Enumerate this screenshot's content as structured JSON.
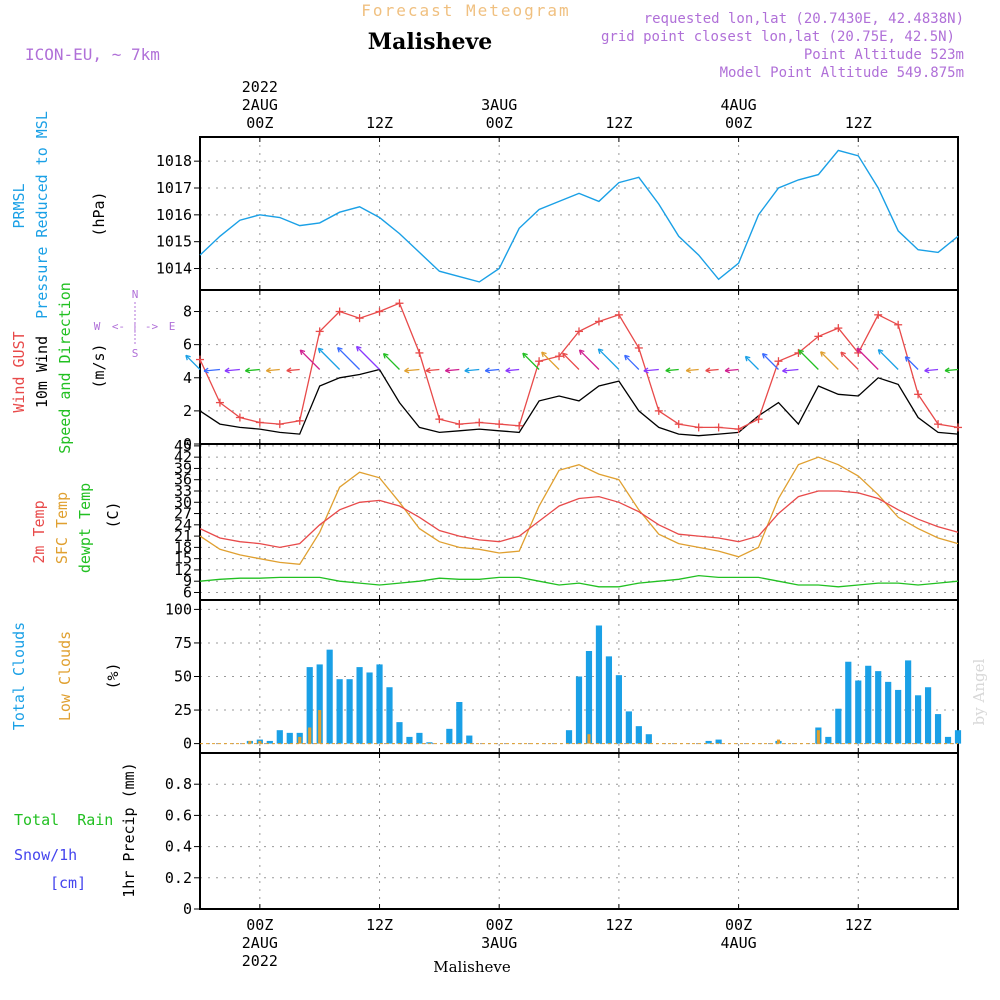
{
  "header": {
    "title": "Forecast Meteogram",
    "location": "Malisheve",
    "model": "ICON-EU, ~ 7km",
    "requested": "requested lon,lat (20.7430E, 42.4838N)",
    "gridpoint": "grid point closest lon,lat (20.75E, 42.5N)",
    "point_alt": "Point Altitude 523m",
    "model_alt": "Model Point Altitude 549.875m",
    "footer_location": "Malisheve",
    "watermark": "by Angel"
  },
  "time_axis": {
    "top_ticks": [
      "00Z",
      "12Z",
      "00Z",
      "12Z",
      "00Z",
      "12Z"
    ],
    "bottom_ticks": [
      "00Z",
      "12Z",
      "00Z",
      "12Z",
      "00Z",
      "12Z"
    ],
    "top_year": "2022",
    "top_dates": [
      "2AUG",
      "3AUG",
      "4AUG"
    ],
    "bottom_dates": [
      "2AUG",
      "3AUG",
      "4AUG"
    ],
    "bottom_year": "2022"
  },
  "labels": {
    "p_l1": "PRMSL",
    "p_l2": "Pressure Reduced to MSL",
    "p_unit": "(hPa)",
    "w_l1": "Wind GUST",
    "w_l2": "10m Wind",
    "w_l3": "Speed and Direction",
    "w_unit": "(m/s)",
    "compass_n": "N",
    "compass_s": "S",
    "compass_w": "W",
    "compass_e": "E",
    "compass_mid": "<- | ->",
    "t_l1": "2m Temp",
    "t_l2": "SFC Temp",
    "t_l3": "dewpt Temp",
    "t_unit": "(C)",
    "c_l1": "Total Clouds",
    "c_l2": "Low Clouds",
    "c_unit": "(%)",
    "r_l1": "Total  Rain",
    "r_l2": "Snow/1h",
    "r_l3": "[cm]",
    "r_unit": "1hr Precip (mm)"
  },
  "colors": {
    "pressure": "#1aa0e6",
    "gust": "#e84a4a",
    "wind": "#000000",
    "temp2m": "#e84a4a",
    "sfc_temp": "#e0a030",
    "dewpoint": "#22c022",
    "total_clouds": "#1aa0e6",
    "low_clouds": "#e0a030",
    "rain": "#22c022",
    "snow": "#4444ee",
    "label_purple": "#b070d8",
    "title_orange": "#f0c080"
  },
  "chart_data": [
    {
      "type": "line",
      "name": "PRMSL",
      "x_hours": [
        0,
        2,
        4,
        6,
        8,
        10,
        12,
        14,
        16,
        18,
        20,
        22,
        24,
        26,
        28,
        30,
        32,
        34,
        36,
        38,
        40,
        42,
        44,
        46,
        48,
        50,
        52,
        54,
        56,
        58,
        60,
        62,
        64,
        66,
        68,
        70,
        72,
        74,
        76
      ],
      "values": [
        1014.5,
        1015.2,
        1015.8,
        1016.0,
        1015.9,
        1015.6,
        1015.7,
        1016.1,
        1016.3,
        1015.9,
        1015.3,
        1014.6,
        1013.9,
        1013.7,
        1013.5,
        1014.0,
        1015.5,
        1016.2,
        1016.5,
        1016.8,
        1016.5,
        1017.2,
        1017.4,
        1016.4,
        1015.2,
        1014.5,
        1013.6,
        1014.2,
        1016.0,
        1017.0,
        1017.3,
        1017.5,
        1018.4,
        1018.2,
        1017.0,
        1015.4,
        1014.7,
        1014.6,
        1015.2
      ],
      "y_ticks": [
        1014,
        1015,
        1016,
        1017,
        1018
      ],
      "ylim": [
        1013.2,
        1018.9
      ]
    },
    {
      "type": "line",
      "name": "Wind",
      "x_hours": [
        0,
        2,
        4,
        6,
        8,
        10,
        12,
        14,
        16,
        18,
        20,
        22,
        24,
        26,
        28,
        30,
        32,
        34,
        36,
        38,
        40,
        42,
        44,
        46,
        48,
        50,
        52,
        54,
        56,
        58,
        60,
        62,
        64,
        66,
        68,
        70,
        72,
        74,
        76
      ],
      "gust": [
        5.1,
        2.5,
        1.6,
        1.3,
        1.2,
        1.4,
        6.8,
        8.0,
        7.6,
        8.0,
        8.5,
        5.5,
        1.5,
        1.2,
        1.3,
        1.2,
        1.1,
        5.0,
        5.3,
        6.8,
        7.4,
        7.8,
        5.8,
        2.0,
        1.2,
        1.0,
        1.0,
        0.9,
        1.5,
        5.0,
        5.5,
        6.5,
        7.0,
        5.5,
        7.8,
        7.2,
        3.0,
        1.2,
        1.0
      ],
      "wind": [
        2.0,
        1.2,
        1.0,
        0.9,
        0.7,
        0.6,
        3.5,
        4.0,
        4.2,
        4.5,
        2.5,
        1.0,
        0.7,
        0.8,
        0.9,
        0.8,
        0.7,
        2.6,
        2.9,
        2.6,
        3.5,
        3.8,
        2.0,
        1.0,
        0.6,
        0.5,
        0.6,
        0.7,
        1.7,
        2.5,
        1.2,
        3.5,
        3.0,
        2.9,
        4.0,
        3.6,
        1.6,
        0.7,
        0.6
      ],
      "y_ticks": [
        0,
        2,
        4,
        6,
        8
      ],
      "ylim": [
        0,
        9.3
      ]
    },
    {
      "type": "line",
      "name": "Temperature",
      "x_hours": [
        0,
        2,
        4,
        6,
        8,
        10,
        12,
        14,
        16,
        18,
        20,
        22,
        24,
        26,
        28,
        30,
        32,
        34,
        36,
        38,
        40,
        42,
        44,
        46,
        48,
        50,
        52,
        54,
        56,
        58,
        60,
        62,
        64,
        66,
        68,
        70,
        72,
        74,
        76
      ],
      "temp2m": [
        23.0,
        20.5,
        19.5,
        19.0,
        18.0,
        19.0,
        24.0,
        28.0,
        30.0,
        30.5,
        29.0,
        26.0,
        22.5,
        21.0,
        20.0,
        19.5,
        21.0,
        25.0,
        29.0,
        31.0,
        31.5,
        30.0,
        27.5,
        24.0,
        21.5,
        21.0,
        20.5,
        19.5,
        21.0,
        27.0,
        31.5,
        33.0,
        33.0,
        32.5,
        31.0,
        28.0,
        25.5,
        23.5,
        22.0
      ],
      "sfc_temp": [
        21.0,
        17.5,
        16.0,
        15.0,
        14.0,
        13.5,
        22.0,
        34.0,
        38.0,
        36.5,
        30.0,
        23.0,
        19.5,
        18.0,
        17.5,
        16.5,
        17.0,
        29.0,
        38.5,
        40.0,
        37.5,
        36.0,
        28.0,
        21.5,
        19.0,
        18.0,
        17.0,
        15.5,
        18.0,
        31.0,
        40.0,
        42.0,
        40.0,
        37.0,
        32.0,
        26.0,
        23.0,
        20.5,
        19.0
      ],
      "dewpoint": [
        9.0,
        9.5,
        9.8,
        9.8,
        10.0,
        10.0,
        10.0,
        9.0,
        8.5,
        8.0,
        8.5,
        9.0,
        9.8,
        9.5,
        9.5,
        10.0,
        10.0,
        9.0,
        8.0,
        8.5,
        7.5,
        7.5,
        8.5,
        9.0,
        9.5,
        10.5,
        10.0,
        10.0,
        10.0,
        9.0,
        8.0,
        8.0,
        7.5,
        8.0,
        8.5,
        8.5,
        8.0,
        8.5,
        9.0
      ],
      "y_ticks": [
        6,
        9,
        12,
        15,
        18,
        21,
        24,
        27,
        30,
        33,
        36,
        39,
        42,
        45
      ],
      "ylim": [
        4,
        45.5
      ]
    },
    {
      "type": "bar",
      "name": "Clouds",
      "x_hours": [
        0,
        1,
        2,
        3,
        4,
        5,
        6,
        7,
        8,
        9,
        10,
        11,
        12,
        13,
        14,
        15,
        16,
        17,
        18,
        19,
        20,
        21,
        22,
        23,
        24,
        25,
        26,
        27,
        28,
        29,
        30,
        31,
        32,
        33,
        34,
        35,
        36,
        37,
        38,
        39,
        40,
        41,
        42,
        43,
        44,
        45,
        46,
        47,
        48,
        49,
        50,
        51,
        52,
        53,
        54,
        55,
        56,
        57,
        58,
        59,
        60,
        61,
        62,
        63,
        64,
        65,
        66,
        67,
        68,
        69,
        70,
        71,
        72,
        73,
        74,
        75,
        76
      ],
      "total": [
        0,
        0,
        0,
        0,
        0,
        2,
        3,
        2,
        10,
        8,
        8,
        57,
        59,
        70,
        48,
        48,
        57,
        53,
        59,
        42,
        16,
        5,
        8,
        1,
        0,
        11,
        31,
        6,
        0,
        0,
        0,
        0,
        0,
        0,
        0,
        0,
        0,
        10,
        50,
        69,
        88,
        65,
        51,
        24,
        13,
        7,
        0,
        0,
        0,
        0,
        0,
        2,
        3,
        0,
        0,
        0,
        0,
        0,
        2,
        0,
        0,
        0,
        12,
        5,
        26,
        61,
        47,
        58,
        54,
        46,
        40,
        62,
        36,
        42,
        22,
        5,
        10
      ],
      "low": [
        0,
        0,
        0,
        0,
        0,
        2,
        2,
        0,
        0,
        0,
        5,
        12,
        25,
        0,
        0,
        0,
        0,
        0,
        0,
        0,
        0,
        0,
        0,
        0,
        0,
        0,
        0,
        0,
        0,
        0,
        0,
        0,
        0,
        0,
        0,
        0,
        0,
        0,
        0,
        7,
        0,
        0,
        0,
        0,
        0,
        0,
        0,
        0,
        0,
        0,
        0,
        0,
        0,
        0,
        0,
        0,
        0,
        0,
        3,
        0,
        0,
        0,
        10,
        0,
        0,
        0,
        0,
        0,
        0,
        0,
        0,
        0,
        0,
        0,
        0,
        0,
        0
      ],
      "y_ticks": [
        0,
        25,
        50,
        75,
        100
      ],
      "ylim": [
        -7,
        107
      ]
    },
    {
      "type": "bar",
      "name": "Precipitation",
      "values": [],
      "y_ticks": [
        0,
        0.2,
        0.4,
        0.6,
        0.8
      ],
      "ylim": [
        0,
        1.0
      ]
    }
  ]
}
